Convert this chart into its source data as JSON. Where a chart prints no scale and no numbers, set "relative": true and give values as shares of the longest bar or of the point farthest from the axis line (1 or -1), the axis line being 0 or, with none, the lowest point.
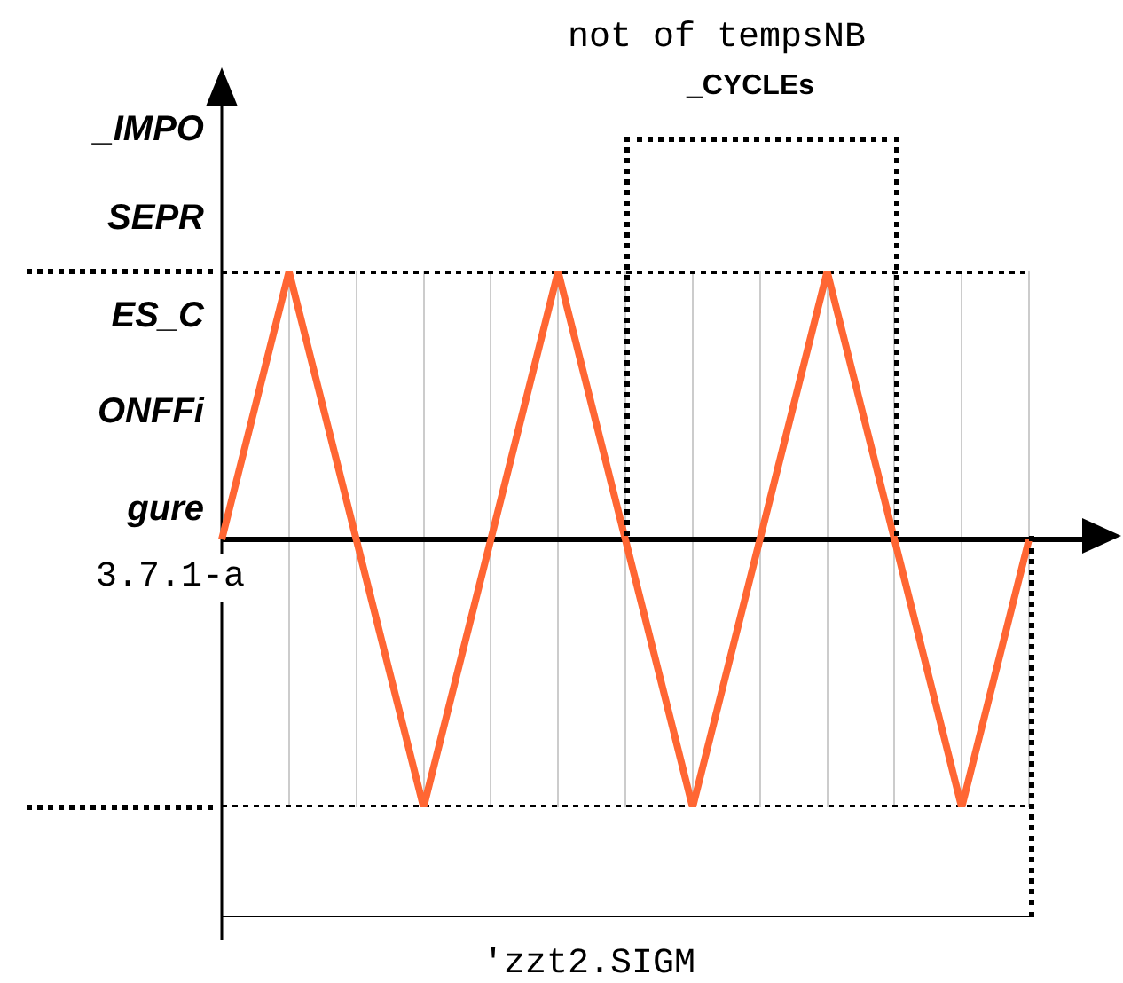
{
  "chart_data": {
    "type": "line",
    "relative": true,
    "categories": [
      null,
      null,
      null,
      null,
      null,
      null,
      null,
      null,
      null,
      null,
      null,
      null,
      null
    ],
    "series": [
      {
        "color": "#ff6633",
        "values": [
          0,
          1,
          0,
          -1,
          0,
          1,
          0,
          -1,
          0,
          1,
          0,
          -1,
          0
        ]
      },
      {
        "color": "#000000",
        "line_style": "dotted",
        "values": [
          1,
          1,
          1,
          1,
          1,
          1,
          1,
          1,
          1,
          1,
          1,
          1,
          1
        ]
      },
      {
        "color": "#000000",
        "line_style": "dotted",
        "values": [
          -1,
          -1,
          -1,
          -1,
          -1,
          -1,
          -1,
          -1,
          -1,
          -1,
          -1,
          -1,
          -1
        ]
      }
    ],
    "grid": "x",
    "legend": false,
    "marker": "none",
    "line_style": "solid",
    "annotations": [
      "_IMPO",
      "SEPR",
      "ES_C",
      "ONFFi",
      "gure",
      "3.7.1-a",
      "not of tempsNB",
      "_CYCLEs",
      "'zzt2.SIGM"
    ]
  }
}
